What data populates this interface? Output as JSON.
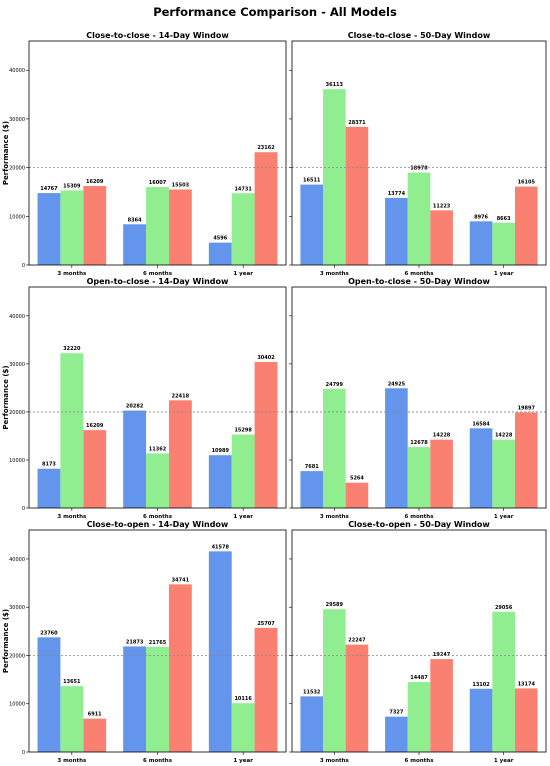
{
  "figure": {
    "title": "Performance Comparison - All Models"
  },
  "colors": {
    "series": [
      "#6495ed",
      "#90ee90",
      "#fa8072"
    ],
    "reference_line": "#888888",
    "axes": "#000000"
  },
  "chart_data": [
    {
      "type": "bar",
      "title": "Close-to-close - 14-Day Window",
      "ylabel": "Performance ($)",
      "xlabel": "",
      "categories": [
        "3 months",
        "6 months",
        "1 year"
      ],
      "series": [
        {
          "values": [
            14767,
            8364,
            4596
          ]
        },
        {
          "values": [
            15309,
            16007,
            14731
          ]
        },
        {
          "values": [
            16209,
            15503,
            23162
          ]
        }
      ],
      "ylim": [
        0,
        46000
      ],
      "yticks": [
        0,
        10000,
        20000,
        30000,
        40000
      ],
      "reference_line": 20000,
      "grid": false,
      "legend": "none"
    },
    {
      "type": "bar",
      "title": "Close-to-close - 50-Day Window",
      "ylabel": "",
      "xlabel": "",
      "categories": [
        "3 months",
        "6 months",
        "1 year"
      ],
      "series": [
        {
          "values": [
            16511,
            13774,
            8976
          ]
        },
        {
          "values": [
            36113,
            18978,
            8663
          ]
        },
        {
          "values": [
            28371,
            11223,
            16105
          ]
        }
      ],
      "ylim": [
        0,
        46000
      ],
      "yticks": [],
      "reference_line": 20000,
      "grid": false,
      "legend": "none"
    },
    {
      "type": "bar",
      "title": "Open-to-close - 14-Day Window",
      "ylabel": "Performance ($)",
      "xlabel": "",
      "categories": [
        "3 months",
        "6 months",
        "1 year"
      ],
      "series": [
        {
          "values": [
            8173,
            20282,
            10989
          ]
        },
        {
          "values": [
            32220,
            11362,
            15298
          ]
        },
        {
          "values": [
            16209,
            22418,
            30402
          ]
        }
      ],
      "ylim": [
        0,
        46000
      ],
      "yticks": [
        0,
        10000,
        20000,
        30000,
        40000
      ],
      "reference_line": 20000,
      "grid": false,
      "legend": "none"
    },
    {
      "type": "bar",
      "title": "Open-to-close - 50-Day Window",
      "ylabel": "",
      "xlabel": "",
      "categories": [
        "3 months",
        "6 months",
        "1 year"
      ],
      "series": [
        {
          "values": [
            7681,
            24925,
            16584
          ]
        },
        {
          "values": [
            24799,
            12678,
            14228
          ]
        },
        {
          "values": [
            5264,
            14228,
            19897
          ]
        }
      ],
      "ylim": [
        0,
        46000
      ],
      "yticks": [],
      "reference_line": 20000,
      "grid": false,
      "legend": "none"
    },
    {
      "type": "bar",
      "title": "Close-to-open - 14-Day Window",
      "ylabel": "Performance ($)",
      "xlabel": "",
      "categories": [
        "3 months",
        "6 months",
        "1 year"
      ],
      "series": [
        {
          "values": [
            23760,
            21873,
            41578
          ]
        },
        {
          "values": [
            13651,
            21765,
            10116
          ]
        },
        {
          "values": [
            6911,
            34741,
            25707
          ]
        }
      ],
      "ylim": [
        0,
        46000
      ],
      "yticks": [
        0,
        10000,
        20000,
        30000,
        40000
      ],
      "reference_line": 20000,
      "grid": false,
      "legend": "none"
    },
    {
      "type": "bar",
      "title": "Close-to-open - 50-Day Window",
      "ylabel": "",
      "xlabel": "",
      "categories": [
        "3 months",
        "6 months",
        "1 year"
      ],
      "series": [
        {
          "values": [
            11532,
            7327,
            13102
          ]
        },
        {
          "values": [
            29589,
            14487,
            29056
          ]
        },
        {
          "values": [
            22247,
            19247,
            13174
          ]
        }
      ],
      "ylim": [
        0,
        46000
      ],
      "yticks": [],
      "reference_line": 20000,
      "grid": false,
      "legend": "none"
    }
  ]
}
